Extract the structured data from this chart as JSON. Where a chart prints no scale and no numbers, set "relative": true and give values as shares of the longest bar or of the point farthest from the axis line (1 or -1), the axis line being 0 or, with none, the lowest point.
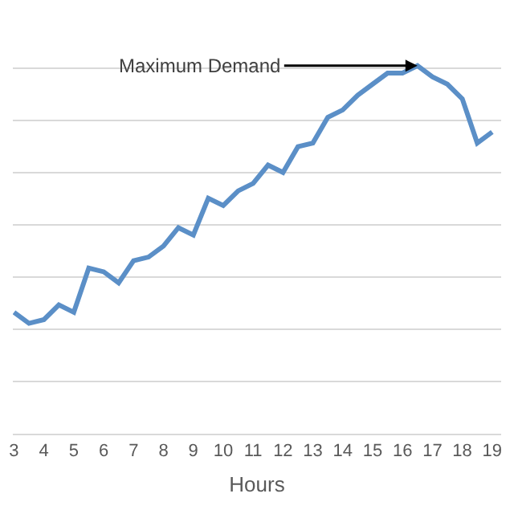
{
  "chart_data": {
    "type": "line",
    "xlabel": "Hours",
    "relative": true,
    "grid": "y",
    "marker": "none",
    "line_style": "solid",
    "x": [
      3,
      3.5,
      4,
      4.5,
      5,
      5.5,
      6,
      6.5,
      7,
      7.5,
      8,
      8.5,
      9,
      9.5,
      10,
      10.5,
      11,
      11.5,
      12,
      12.5,
      13,
      13.5,
      14,
      14.5,
      15,
      15.5,
      16,
      16.5,
      17,
      17.5,
      18,
      18.5,
      19
    ],
    "xlim": [
      2.96,
      19.3
    ],
    "xticks": [
      3,
      4,
      5,
      6,
      7,
      8,
      9,
      10,
      11,
      12,
      13,
      14,
      15,
      16,
      17,
      18,
      19
    ],
    "series": [
      {
        "color": "#5b8fc7",
        "values": [
          0.33,
          0.3,
          0.31,
          0.35,
          0.33,
          0.45,
          0.44,
          0.41,
          0.47,
          0.48,
          0.51,
          0.56,
          0.54,
          0.64,
          0.62,
          0.66,
          0.68,
          0.73,
          0.71,
          0.78,
          0.79,
          0.86,
          0.88,
          0.92,
          0.95,
          0.98,
          0.98,
          1,
          0.97,
          0.95,
          0.91,
          0.79,
          0.82
        ]
      }
    ],
    "annotations": [
      {
        "text": "Maximum Demand",
        "x": 16.5,
        "y": 1
      }
    ]
  }
}
